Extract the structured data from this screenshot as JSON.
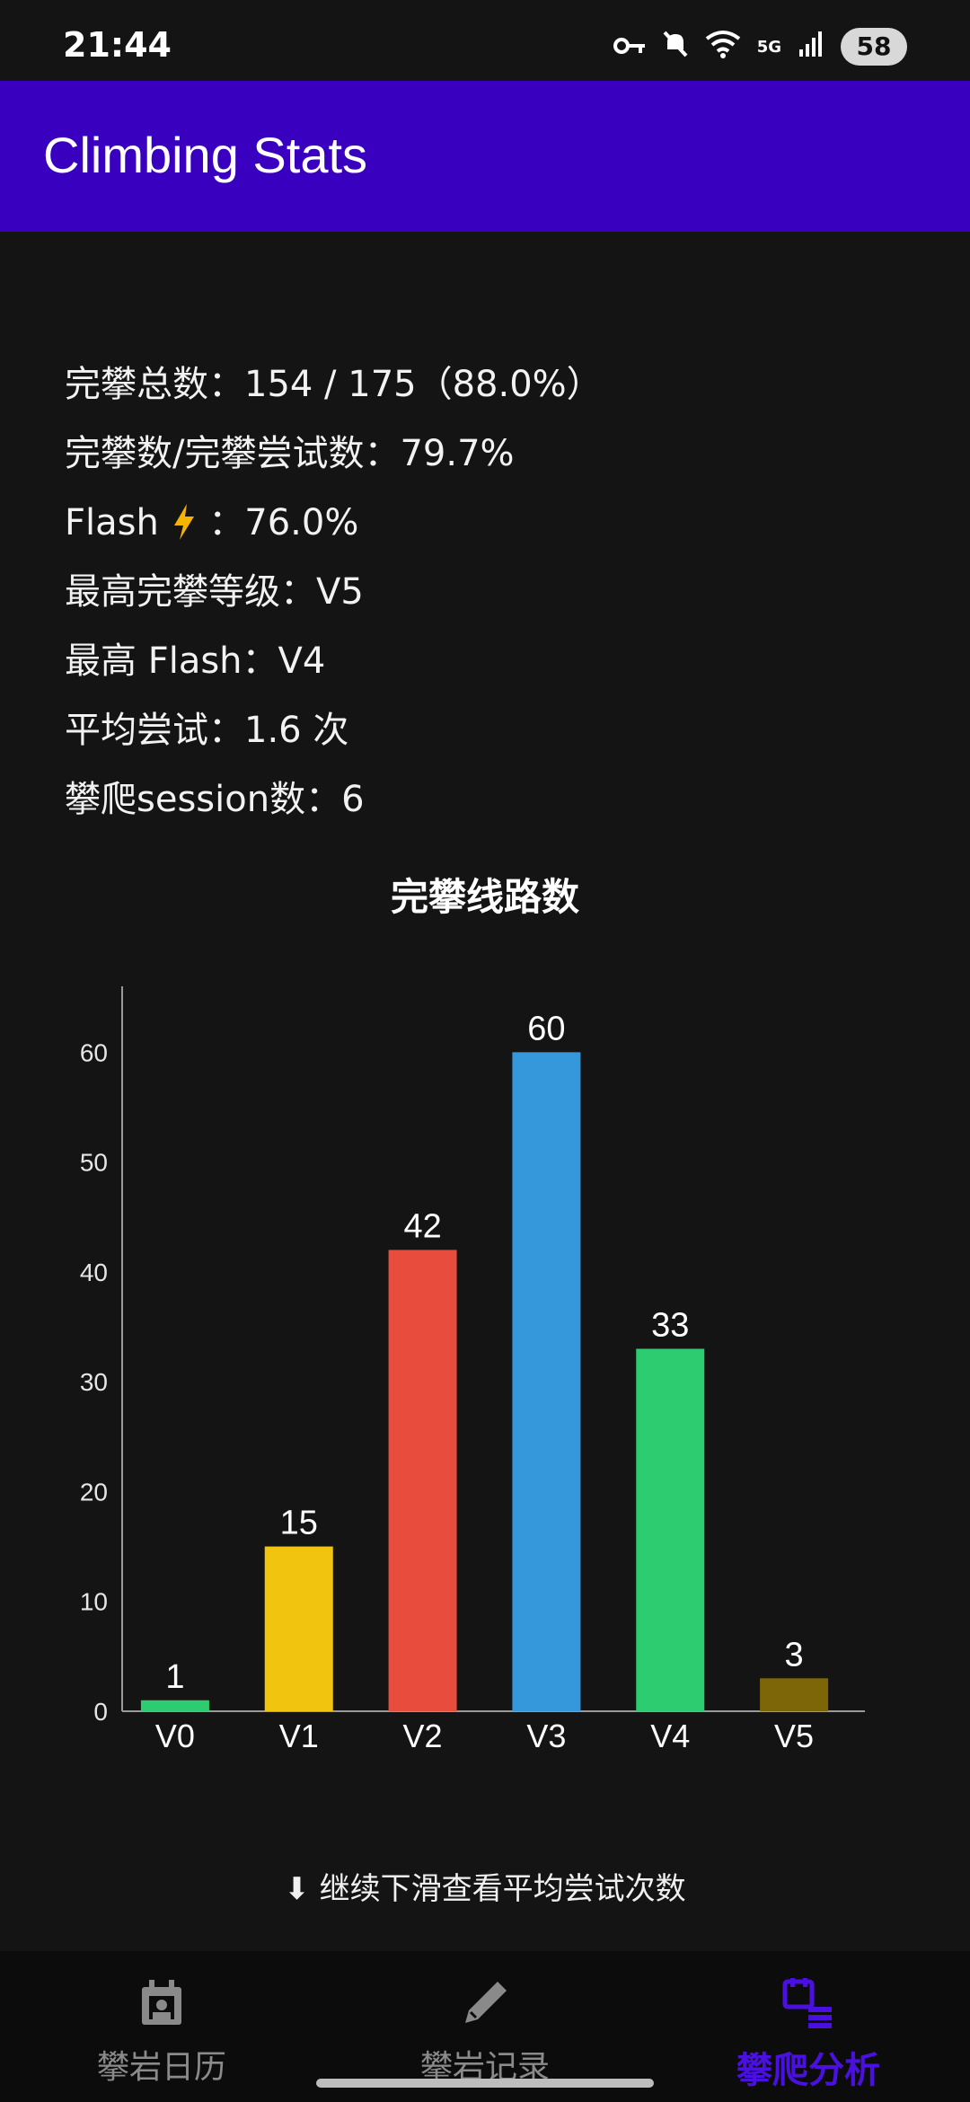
{
  "status_bar": {
    "time": "21:44",
    "battery": "58",
    "network": "5G",
    "icons": [
      "key-icon",
      "mute-icon",
      "wifi-icon",
      "signal-icon"
    ]
  },
  "app_bar": {
    "title": "Climbing Stats",
    "color": "#3a00c0"
  },
  "stats": {
    "total_sends": "完攀总数：154 / 175（88.0%）",
    "send_ratio": "完攀数/完攀尝试数：79.7%",
    "flash_label": "Flash",
    "flash_value": "：76.0%",
    "max_send_grade": "最高完攀等级：V5",
    "max_flash": "最高 Flash：V4",
    "avg_attempts": "平均尝试：1.6 次",
    "sessions": "攀爬session数：6"
  },
  "chart_data": {
    "type": "bar",
    "title": "完攀线路数",
    "categories": [
      "V0",
      "V1",
      "V2",
      "V3",
      "V4",
      "V5"
    ],
    "values": [
      1,
      15,
      42,
      60,
      33,
      3
    ],
    "colors": [
      "#2ecc71",
      "#f1c40f",
      "#e74c3c",
      "#3498db",
      "#2ecc71",
      "#7d6608"
    ],
    "yticks": [
      "0",
      "10",
      "20",
      "30",
      "40",
      "50",
      "60"
    ],
    "ylim": [
      0,
      66
    ],
    "grid": false,
    "xlabel": "",
    "ylabel": ""
  },
  "hint": {
    "text": "⬇ 继续下滑查看平均尝试次数"
  },
  "bottom_nav": {
    "items": [
      {
        "label": "攀岩日历",
        "icon": "calendar-icon",
        "active": false
      },
      {
        "label": "攀岩记录",
        "icon": "pencil-icon",
        "active": false
      },
      {
        "label": "攀爬分析",
        "icon": "analytics-icon",
        "active": true
      }
    ],
    "active_color": "#4a10e0",
    "inactive_color": "#8a8a8a"
  }
}
